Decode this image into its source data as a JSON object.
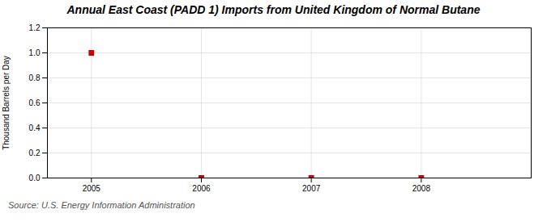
{
  "chart_data": {
    "type": "scatter",
    "title": "Annual East Coast (PADD 1) Imports from United Kingdom of Normal Butane",
    "ylabel": "Thousand Barrels per Day",
    "annotations": [
      "Source: U.S. Energy Information Administration"
    ],
    "x": [
      2005,
      2006,
      2007,
      2008
    ],
    "values": [
      1.0,
      0.0,
      0.0,
      0.0
    ],
    "color": "#CC0000",
    "marker": "square",
    "xlim": [
      2004.6,
      2009.0
    ],
    "xticks": [
      2005,
      2006,
      2007,
      2008
    ],
    "ylim": [
      0.0,
      1.2
    ],
    "yticks": [
      {
        "value": 0.0,
        "label": "0.0"
      },
      {
        "value": 0.2,
        "label": "0.2"
      },
      {
        "value": 0.4,
        "label": "0.4"
      },
      {
        "value": 0.6,
        "label": "0.6"
      },
      {
        "value": 0.8,
        "label": "0.8"
      },
      {
        "value": 1.0,
        "label": "1.0"
      },
      {
        "value": 1.2,
        "label": "1.2"
      }
    ],
    "grid": true
  }
}
